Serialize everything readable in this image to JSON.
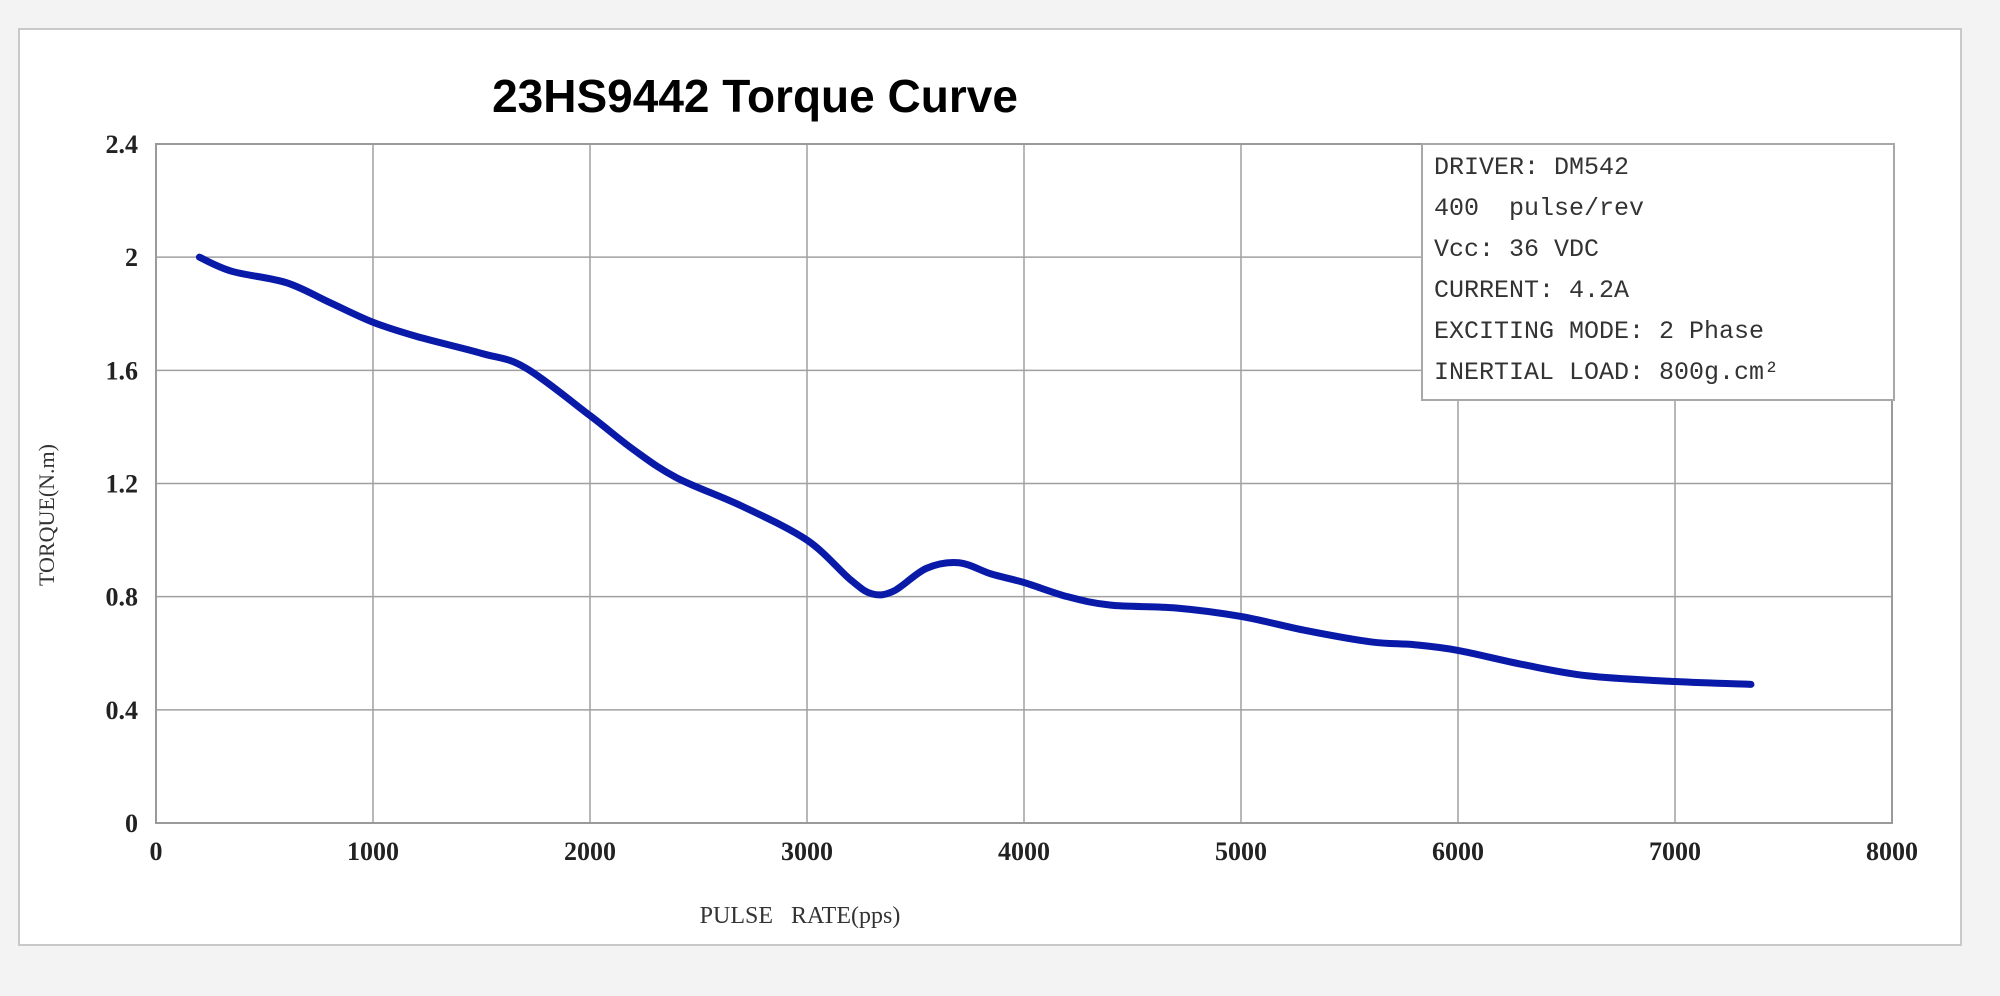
{
  "chart_data": {
    "type": "line",
    "title": "23HS9442 Torque Curve",
    "xlabel": "PULSE   RATE(pps)",
    "ylabel": "TORQUE(N.m)",
    "xlim": [
      0,
      8000
    ],
    "ylim": [
      0,
      2.4
    ],
    "x_ticks": [
      0,
      1000,
      2000,
      3000,
      4000,
      5000,
      6000,
      7000,
      8000
    ],
    "x_tick_labels": [
      "0",
      "1000",
      "2000",
      "3000",
      "4000",
      "5000",
      "6000",
      "7000",
      "8000"
    ],
    "y_ticks": [
      0,
      0.4,
      0.8,
      1.2,
      1.6,
      2,
      2.4
    ],
    "y_tick_labels": [
      "0",
      "0.4",
      "0.8",
      "1.2",
      "1.6",
      "2",
      "2.4"
    ],
    "grid": true,
    "series": [
      {
        "color": "#0a1aa8",
        "x": [
          200,
          350,
          600,
          800,
          1000,
          1200,
          1500,
          1700,
          2000,
          2200,
          2400,
          2700,
          3000,
          3200,
          3300,
          3400,
          3550,
          3700,
          3850,
          4000,
          4200,
          4400,
          4700,
          5000,
          5300,
          5600,
          5800,
          6000,
          6300,
          6600,
          7000,
          7350
        ],
        "y": [
          2.0,
          1.95,
          1.91,
          1.84,
          1.77,
          1.72,
          1.66,
          1.61,
          1.44,
          1.32,
          1.22,
          1.12,
          1.0,
          0.86,
          0.81,
          0.82,
          0.9,
          0.92,
          0.88,
          0.85,
          0.8,
          0.77,
          0.76,
          0.73,
          0.68,
          0.64,
          0.63,
          0.61,
          0.56,
          0.52,
          0.5,
          0.49
        ]
      }
    ],
    "info_box": {
      "location": "top-right",
      "lines": [
        "DRIVER: DM542",
        "400  pulse/rev",
        "Vcc: 36 VDC",
        "CURRENT: 4.2A",
        "EXCITING MODE: 2 Phase",
        "INERTIAL LOAD: 800g.cm²"
      ]
    }
  }
}
